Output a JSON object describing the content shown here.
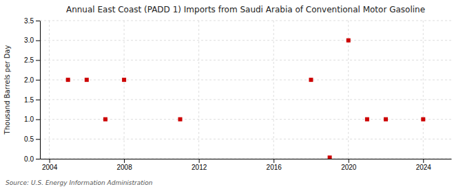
{
  "chart_data": {
    "type": "scatter",
    "title": "Annual East Coast (PADD 1) Imports from Saudi Arabia of Conventional Motor Gasoline",
    "y_label": "Thousand Barrels per Day",
    "source": "Source: U.S. Energy Information Administration",
    "x": [
      2005,
      2006,
      2007,
      2008,
      2011,
      2018,
      2019,
      2020,
      2021,
      2022,
      2024
    ],
    "values": [
      2.0,
      2.0,
      1.0,
      2.0,
      1.0,
      2.0,
      0.03,
      3.0,
      1.0,
      1.0,
      1.0
    ],
    "color": "#cc0000",
    "marker": "square",
    "xlim": [
      2003.5,
      2025.5
    ],
    "ylim": [
      0.0,
      3.5
    ],
    "xticks": [
      2004,
      2008,
      2012,
      2016,
      2020,
      2024
    ],
    "yticks": [
      {
        "value": 0.0,
        "label": "0.0"
      },
      0.5,
      {
        "value": 1.0,
        "label": "1.0"
      },
      1.5,
      {
        "value": 2.0,
        "label": "2.0"
      },
      2.5,
      {
        "value": 3.0,
        "label": "3.0"
      },
      3.5
    ],
    "grid": true
  }
}
